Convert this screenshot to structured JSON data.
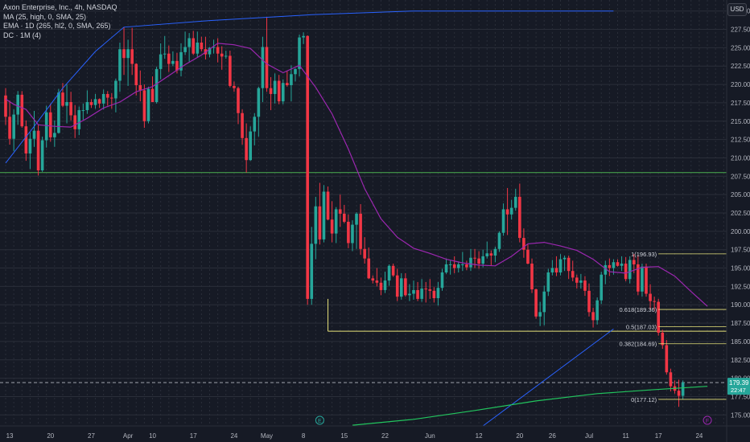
{
  "legend": {
    "symbol_line": "Axon Enterprise, Inc., 4h, NASDAQ",
    "ma_line": "MA (25, high, 0, SMA, 25)",
    "ema_line": "EMA · 1D (265, hl2, 0, SMA, 265)",
    "dc_line": "DC · 1M (4)"
  },
  "currency_label": "USD",
  "colors": {
    "background": "#161a25",
    "grid": "#2a2e39",
    "up": "#26a69a",
    "down": "#f23645",
    "ma": "#9c27b0",
    "ema": "#22c55e",
    "donchian": "#2962ff",
    "hline": "#4caf50",
    "fib": "#e8e37a",
    "text": "#b2b5be"
  },
  "chart_data": {
    "type": "candlestick",
    "ylim": [
      173.5,
      231.5
    ],
    "y_ticks": [
      "230.00",
      "227.50",
      "225.00",
      "222.50",
      "220.00",
      "217.50",
      "215.00",
      "212.50",
      "210.00",
      "207.50",
      "205.00",
      "202.50",
      "200.00",
      "197.50",
      "195.00",
      "192.50",
      "190.00",
      "187.50",
      "185.00",
      "182.50",
      "180.00",
      "177.50",
      "175.00"
    ],
    "x_ticks": [
      {
        "label": "13",
        "bar": 1
      },
      {
        "label": "20",
        "bar": 11
      },
      {
        "label": "27",
        "bar": 21
      },
      {
        "label": "Apr",
        "bar": 30
      },
      {
        "label": "10",
        "bar": 36
      },
      {
        "label": "17",
        "bar": 46
      },
      {
        "label": "24",
        "bar": 56
      },
      {
        "label": "May",
        "bar": 64
      },
      {
        "label": "8",
        "bar": 73
      },
      {
        "label": "15",
        "bar": 83
      },
      {
        "label": "22",
        "bar": 93
      },
      {
        "label": "Jun",
        "bar": 104
      },
      {
        "label": "12",
        "bar": 116
      },
      {
        "label": "20",
        "bar": 126
      },
      {
        "label": "26",
        "bar": 134
      },
      {
        "label": "Jul",
        "bar": 143
      },
      {
        "label": "11",
        "bar": 152
      },
      {
        "label": "17",
        "bar": 160
      },
      {
        "label": "24",
        "bar": 170
      }
    ],
    "price_badge": {
      "value": "179.39",
      "countdown": "22:47"
    },
    "candles": [
      [
        218.5,
        219.5,
        214.5,
        215.6
      ],
      [
        215.6,
        217.8,
        211.8,
        212.6
      ],
      [
        212.6,
        216.6,
        210.9,
        215.9
      ],
      [
        215.9,
        219.1,
        214.5,
        218.6
      ],
      [
        218.6,
        219.1,
        214.1,
        214.3
      ],
      [
        214.3,
        215.1,
        209.6,
        210.6
      ],
      [
        210.6,
        213.5,
        208.5,
        212.6
      ],
      [
        212.6,
        216.4,
        211.5,
        213.7
      ],
      [
        213.7,
        214.5,
        207.6,
        208.3
      ],
      [
        208.3,
        212.9,
        208.1,
        212.4
      ],
      [
        212.4,
        217.1,
        211.4,
        216.2
      ],
      [
        216.2,
        217.4,
        212.2,
        212.8
      ],
      [
        212.8,
        215.1,
        211.5,
        213.4
      ],
      [
        213.4,
        219.4,
        213.3,
        218.9
      ],
      [
        218.9,
        220.2,
        216.9,
        217.1
      ],
      [
        217.1,
        220.0,
        214.7,
        217.6
      ],
      [
        217.6,
        219.0,
        215.1,
        215.8
      ],
      [
        215.8,
        217.2,
        212.7,
        213.9
      ],
      [
        213.9,
        217.0,
        213.1,
        216.5
      ],
      [
        216.5,
        217.4,
        215.2,
        216.5
      ],
      [
        216.5,
        219.2,
        216.0,
        217.6
      ],
      [
        217.6,
        218.0,
        216.8,
        217.2
      ],
      [
        217.2,
        218.7,
        216.7,
        218.0
      ],
      [
        218.0,
        218.1,
        216.8,
        217.4
      ],
      [
        217.4,
        219.3,
        216.6,
        218.7
      ],
      [
        218.7,
        219.1,
        217.1,
        218.2
      ],
      [
        218.2,
        218.8,
        216.7,
        218.1
      ],
      [
        218.1,
        220.8,
        216.2,
        220.5
      ],
      [
        220.5,
        225.7,
        219.0,
        224.8
      ],
      [
        224.8,
        227.8,
        221.3,
        223.6
      ],
      [
        223.6,
        226.1,
        219.8,
        224.8
      ],
      [
        224.8,
        227.7,
        221.3,
        222.8
      ],
      [
        222.8,
        222.9,
        218.5,
        219.9
      ],
      [
        219.9,
        221.9,
        217.7,
        219.2
      ],
      [
        219.2,
        220.0,
        214.1,
        215.0
      ],
      [
        215.0,
        219.7,
        214.7,
        219.4
      ],
      [
        219.4,
        221.1,
        217.6,
        217.6
      ],
      [
        217.6,
        222.4,
        217.4,
        222.1
      ],
      [
        222.1,
        225.6,
        220.7,
        224.1
      ],
      [
        224.1,
        226.6,
        223.5,
        224.2
      ],
      [
        224.2,
        225.3,
        221.7,
        222.8
      ],
      [
        222.8,
        224.5,
        222.5,
        223.2
      ],
      [
        223.2,
        224.3,
        221.5,
        221.9
      ],
      [
        221.9,
        225.6,
        221.1,
        224.4
      ],
      [
        224.4,
        227.2,
        224.0,
        225.1
      ],
      [
        225.1,
        227.0,
        223.1,
        226.3
      ],
      [
        226.3,
        227.3,
        224.0,
        224.2
      ],
      [
        224.2,
        227.2,
        223.7,
        225.7
      ],
      [
        225.7,
        226.5,
        224.5,
        224.8
      ],
      [
        224.8,
        226.5,
        223.4,
        224.1
      ],
      [
        224.1,
        225.1,
        223.7,
        225.0
      ],
      [
        225.0,
        226.1,
        224.2,
        225.1
      ],
      [
        225.1,
        226.3,
        223.0,
        224.2
      ],
      [
        224.2,
        225.2,
        222.0,
        223.8
      ],
      [
        223.8,
        224.6,
        223.5,
        223.9
      ],
      [
        223.9,
        224.6,
        219.6,
        219.8
      ],
      [
        219.8,
        220.4,
        219.0,
        219.5
      ],
      [
        219.5,
        219.7,
        214.6,
        216.1
      ],
      [
        216.1,
        216.6,
        211.8,
        212.7
      ],
      [
        212.7,
        214.7,
        208.0,
        209.7
      ],
      [
        209.7,
        214.3,
        209.6,
        213.6
      ],
      [
        213.6,
        216.1,
        211.7,
        215.6
      ],
      [
        215.6,
        219.7,
        212.9,
        219.5
      ],
      [
        219.5,
        226.5,
        217.6,
        225.1
      ],
      [
        225.1,
        229.1,
        219.0,
        219.5
      ],
      [
        219.5,
        221.0,
        216.5,
        218.7
      ],
      [
        218.7,
        221.5,
        217.4,
        220.5
      ],
      [
        220.5,
        221.3,
        217.3,
        217.7
      ],
      [
        217.7,
        220.7,
        217.3,
        220.2
      ],
      [
        220.2,
        221.8,
        219.7,
        219.9
      ],
      [
        219.9,
        222.6,
        217.7,
        221.4
      ],
      [
        221.4,
        222.2,
        220.4,
        222.1
      ],
      [
        222.1,
        226.8,
        221.1,
        226.4
      ],
      [
        226.4,
        227.1,
        225.5,
        226.6
      ],
      [
        226.6,
        226.7,
        190.0,
        190.8
      ],
      [
        190.8,
        200.6,
        190.0,
        198.3
      ],
      [
        198.3,
        204.7,
        196.2,
        203.4
      ],
      [
        203.4,
        206.6,
        198.2,
        198.9
      ],
      [
        198.9,
        206.3,
        198.5,
        205.4
      ],
      [
        205.4,
        206.1,
        201.5,
        201.6
      ],
      [
        201.6,
        204.1,
        198.5,
        199.7
      ],
      [
        199.7,
        203.3,
        198.4,
        203.0
      ],
      [
        203.0,
        205.0,
        200.6,
        202.4
      ],
      [
        202.4,
        203.6,
        201.1,
        201.3
      ],
      [
        201.3,
        202.3,
        197.7,
        198.4
      ],
      [
        198.4,
        201.5,
        197.3,
        200.9
      ],
      [
        200.9,
        202.6,
        197.6,
        202.4
      ],
      [
        202.4,
        203.7,
        196.8,
        197.6
      ],
      [
        197.6,
        199.2,
        195.6,
        196.3
      ],
      [
        196.3,
        197.8,
        193.5,
        193.6
      ],
      [
        193.6,
        194.0,
        192.9,
        193.3
      ],
      [
        193.3,
        195.0,
        192.5,
        193.0
      ],
      [
        193.0,
        193.7,
        191.3,
        192.0
      ],
      [
        192.0,
        194.5,
        191.6,
        193.3
      ],
      [
        193.3,
        195.5,
        192.6,
        195.3
      ],
      [
        195.3,
        195.6,
        193.8,
        194.0
      ],
      [
        194.0,
        194.9,
        190.5,
        191.1
      ],
      [
        191.1,
        194.3,
        190.7,
        193.6
      ],
      [
        193.6,
        194.3,
        191.1,
        191.3
      ],
      [
        191.3,
        192.8,
        190.5,
        191.5
      ],
      [
        191.5,
        193.3,
        190.7,
        192.0
      ],
      [
        192.0,
        193.1,
        190.5,
        190.8
      ],
      [
        190.8,
        193.5,
        190.4,
        192.2
      ],
      [
        192.2,
        193.1,
        190.3,
        192.1
      ],
      [
        192.1,
        193.5,
        190.8,
        191.9
      ],
      [
        191.9,
        192.4,
        190.3,
        190.9
      ],
      [
        190.9,
        193.1,
        189.9,
        192.3
      ],
      [
        192.3,
        194.9,
        191.9,
        194.4
      ],
      [
        194.4,
        196.3,
        194.2,
        195.5
      ],
      [
        195.5,
        196.0,
        194.1,
        195.5
      ],
      [
        195.5,
        196.6,
        194.3,
        195.0
      ],
      [
        195.0,
        195.9,
        194.4,
        195.5
      ],
      [
        195.5,
        197.2,
        194.6,
        195.5
      ],
      [
        195.5,
        196.0,
        194.7,
        195.1
      ],
      [
        195.1,
        197.6,
        194.6,
        196.4
      ],
      [
        196.4,
        197.6,
        195.0,
        196.3
      ],
      [
        196.3,
        197.3,
        194.9,
        195.6
      ],
      [
        195.6,
        197.5,
        195.1,
        196.6
      ],
      [
        196.6,
        198.6,
        196.3,
        197.0
      ],
      [
        197.0,
        197.4,
        195.3,
        196.7
      ],
      [
        196.7,
        197.9,
        195.8,
        197.6
      ],
      [
        197.6,
        200.0,
        197.2,
        199.8
      ],
      [
        199.8,
        203.8,
        199.4,
        203.0
      ],
      [
        203.0,
        205.9,
        199.5,
        202.3
      ],
      [
        202.3,
        204.3,
        201.6,
        203.2
      ],
      [
        203.2,
        205.8,
        202.8,
        204.7
      ],
      [
        204.7,
        206.5,
        198.5,
        199.1
      ],
      [
        199.1,
        200.4,
        196.4,
        197.5
      ],
      [
        197.5,
        198.2,
        195.5,
        195.6
      ],
      [
        195.6,
        196.3,
        191.6,
        192.1
      ],
      [
        192.1,
        192.2,
        188.1,
        188.4
      ],
      [
        188.4,
        190.4,
        187.1,
        189.0
      ],
      [
        189.0,
        192.6,
        187.2,
        191.8
      ],
      [
        191.8,
        194.9,
        191.2,
        194.4
      ],
      [
        194.4,
        196.1,
        194.0,
        195.0
      ],
      [
        195.0,
        196.6,
        193.9,
        194.4
      ],
      [
        194.4,
        196.9,
        194.0,
        196.2
      ],
      [
        196.2,
        196.7,
        194.6,
        196.4
      ],
      [
        196.4,
        196.7,
        193.5,
        194.6
      ],
      [
        194.6,
        196.0,
        193.2,
        193.7
      ],
      [
        193.7,
        194.1,
        192.2,
        193.0
      ],
      [
        193.0,
        194.2,
        192.2,
        193.3
      ],
      [
        193.3,
        193.9,
        191.2,
        191.9
      ],
      [
        191.9,
        192.9,
        188.4,
        189.0
      ],
      [
        189.0,
        189.6,
        186.9,
        187.9
      ],
      [
        187.9,
        191.0,
        187.3,
        190.6
      ],
      [
        190.6,
        194.5,
        190.1,
        194.1
      ],
      [
        194.1,
        196.0,
        192.8,
        195.4
      ],
      [
        195.4,
        196.3,
        193.9,
        195.0
      ],
      [
        195.0,
        196.2,
        194.1,
        195.8
      ],
      [
        195.8,
        196.2,
        195.2,
        195.3
      ],
      [
        195.3,
        196.6,
        194.6,
        195.6
      ],
      [
        195.6,
        196.5,
        193.2,
        193.5
      ],
      [
        193.5,
        196.6,
        192.9,
        196.1
      ],
      [
        196.1,
        196.9,
        194.3,
        195.5
      ],
      [
        195.5,
        196.8,
        191.3,
        191.8
      ],
      [
        191.8,
        195.6,
        191.1,
        195.2
      ],
      [
        195.2,
        195.6,
        191.1,
        191.5
      ],
      [
        191.5,
        192.8,
        189.4,
        190.5
      ],
      [
        190.5,
        191.1,
        189.1,
        190.4
      ],
      [
        190.4,
        190.8,
        185.8,
        186.2
      ],
      [
        186.2,
        186.6,
        184.0,
        184.5
      ],
      [
        184.5,
        185.2,
        180.5,
        180.8
      ],
      [
        180.8,
        181.3,
        178.2,
        178.9
      ],
      [
        178.9,
        179.7,
        177.9,
        178.3
      ],
      [
        178.3,
        179.8,
        176.1,
        177.6
      ],
      [
        177.6,
        179.7,
        177.1,
        179.4
      ]
    ],
    "ma": [
      [
        0,
        218.0
      ],
      [
        2,
        217.3
      ],
      [
        5,
        216.6
      ],
      [
        8,
        214.5
      ],
      [
        12,
        214.3
      ],
      [
        16,
        214.2
      ],
      [
        20,
        215.4
      ],
      [
        24,
        216.8
      ],
      [
        28,
        217.6
      ],
      [
        32,
        219.0
      ],
      [
        36,
        219.7
      ],
      [
        40,
        221.2
      ],
      [
        44,
        222.7
      ],
      [
        48,
        224.0
      ],
      [
        52,
        225.6
      ],
      [
        56,
        225.4
      ],
      [
        60,
        224.9
      ],
      [
        64,
        222.8
      ],
      [
        68,
        221.6
      ],
      [
        72,
        222.6
      ],
      [
        76,
        219.6
      ],
      [
        80,
        216.0
      ],
      [
        84,
        211.2
      ],
      [
        88,
        205.8
      ],
      [
        92,
        201.7
      ],
      [
        96,
        199.2
      ],
      [
        100,
        197.7
      ],
      [
        104,
        197.0
      ],
      [
        108,
        196.2
      ],
      [
        112,
        195.7
      ],
      [
        116,
        195.4
      ],
      [
        120,
        195.3
      ],
      [
        124,
        196.6
      ],
      [
        128,
        198.3
      ],
      [
        132,
        198.5
      ],
      [
        136,
        198.0
      ],
      [
        140,
        197.4
      ],
      [
        144,
        196.2
      ],
      [
        148,
        194.5
      ],
      [
        152,
        194.3
      ],
      [
        156,
        195.1
      ],
      [
        160,
        195.2
      ],
      [
        164,
        193.9
      ],
      [
        168,
        191.8
      ],
      [
        172,
        189.8
      ]
    ],
    "ema": [
      [
        85,
        173.6
      ],
      [
        100,
        174.4
      ],
      [
        115,
        175.6
      ],
      [
        130,
        176.9
      ],
      [
        145,
        177.9
      ],
      [
        158,
        178.4
      ],
      [
        172,
        178.9
      ]
    ],
    "donchian_upper": [
      [
        0,
        209.3
      ],
      [
        7,
        214.3
      ],
      [
        14,
        219.5
      ],
      [
        22,
        224.5
      ],
      [
        29,
        227.8
      ],
      [
        50,
        228.7
      ],
      [
        75,
        229.5
      ],
      [
        100,
        230.0
      ],
      [
        149,
        230.0
      ]
    ],
    "donchian_lower": [
      [
        117,
        173.5
      ],
      [
        149,
        186.7
      ]
    ],
    "horizontal_line": {
      "value": 208.0
    },
    "box_line": {
      "value": 186.4,
      "start_bar": 79
    },
    "fibonacci": {
      "start_bar": 160,
      "levels": [
        {
          "label": "1(196.93)",
          "value": 196.93
        },
        {
          "label": "0.618(189.36)",
          "value": 189.36
        },
        {
          "label": "0.5(187.03)",
          "value": 187.03
        },
        {
          "label": "0.382(184.69)",
          "value": 184.69
        },
        {
          "label": "0(177.12)",
          "value": 177.12
        }
      ]
    },
    "markers": [
      {
        "label": "E",
        "bar": 77
      },
      {
        "label": "F",
        "bar": 172
      }
    ]
  }
}
